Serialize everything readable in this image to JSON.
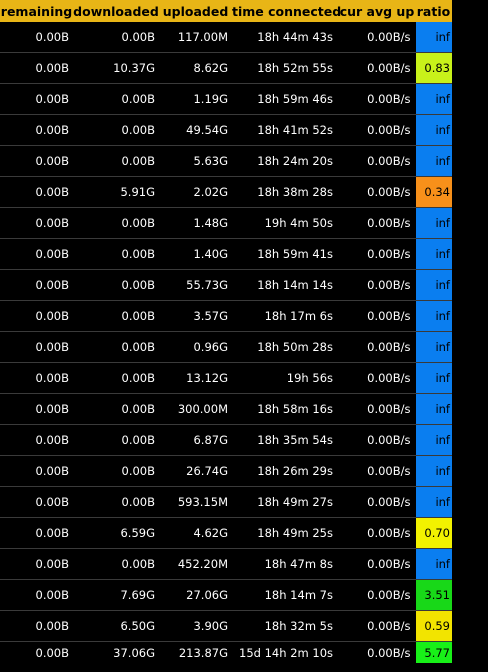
{
  "columns": [
    "remaining",
    "downloaded",
    "uploaded",
    "time connected",
    "cur avg up",
    "ratio"
  ],
  "rows": [
    {
      "remaining": "0.00B",
      "downloaded": "0.00B",
      "uploaded": "117.00M",
      "time": "18h 44m 43s",
      "cur_avg_up": "0.00B/s",
      "ratio": "inf",
      "ratio_color": "#0a7ef0"
    },
    {
      "remaining": "0.00B",
      "downloaded": "10.37G",
      "uploaded": "8.62G",
      "time": "18h 52m 55s",
      "cur_avg_up": "0.00B/s",
      "ratio": "0.83",
      "ratio_color": "#c8f21a"
    },
    {
      "remaining": "0.00B",
      "downloaded": "0.00B",
      "uploaded": "1.19G",
      "time": "18h 59m 46s",
      "cur_avg_up": "0.00B/s",
      "ratio": "inf",
      "ratio_color": "#0a7ef0"
    },
    {
      "remaining": "0.00B",
      "downloaded": "0.00B",
      "uploaded": "49.54G",
      "time": "18h 41m 52s",
      "cur_avg_up": "0.00B/s",
      "ratio": "inf",
      "ratio_color": "#0a7ef0"
    },
    {
      "remaining": "0.00B",
      "downloaded": "0.00B",
      "uploaded": "5.63G",
      "time": "18h 24m 20s",
      "cur_avg_up": "0.00B/s",
      "ratio": "inf",
      "ratio_color": "#0a7ef0"
    },
    {
      "remaining": "0.00B",
      "downloaded": "5.91G",
      "uploaded": "2.02G",
      "time": "18h 38m 28s",
      "cur_avg_up": "0.00B/s",
      "ratio": "0.34",
      "ratio_color": "#f7901a"
    },
    {
      "remaining": "0.00B",
      "downloaded": "0.00B",
      "uploaded": "1.48G",
      "time": "19h 4m 50s",
      "cur_avg_up": "0.00B/s",
      "ratio": "inf",
      "ratio_color": "#0a7ef0"
    },
    {
      "remaining": "0.00B",
      "downloaded": "0.00B",
      "uploaded": "1.40G",
      "time": "18h 59m 41s",
      "cur_avg_up": "0.00B/s",
      "ratio": "inf",
      "ratio_color": "#0a7ef0"
    },
    {
      "remaining": "0.00B",
      "downloaded": "0.00B",
      "uploaded": "55.73G",
      "time": "18h 14m 14s",
      "cur_avg_up": "0.00B/s",
      "ratio": "inf",
      "ratio_color": "#0a7ef0"
    },
    {
      "remaining": "0.00B",
      "downloaded": "0.00B",
      "uploaded": "3.57G",
      "time": "18h 17m 6s",
      "cur_avg_up": "0.00B/s",
      "ratio": "inf",
      "ratio_color": "#0a7ef0"
    },
    {
      "remaining": "0.00B",
      "downloaded": "0.00B",
      "uploaded": "0.96G",
      "time": "18h 50m 28s",
      "cur_avg_up": "0.00B/s",
      "ratio": "inf",
      "ratio_color": "#0a7ef0"
    },
    {
      "remaining": "0.00B",
      "downloaded": "0.00B",
      "uploaded": "13.12G",
      "time": "19h 56s",
      "cur_avg_up": "0.00B/s",
      "ratio": "inf",
      "ratio_color": "#0a7ef0"
    },
    {
      "remaining": "0.00B",
      "downloaded": "0.00B",
      "uploaded": "300.00M",
      "time": "18h 58m 16s",
      "cur_avg_up": "0.00B/s",
      "ratio": "inf",
      "ratio_color": "#0a7ef0"
    },
    {
      "remaining": "0.00B",
      "downloaded": "0.00B",
      "uploaded": "6.87G",
      "time": "18h 35m 54s",
      "cur_avg_up": "0.00B/s",
      "ratio": "inf",
      "ratio_color": "#0a7ef0"
    },
    {
      "remaining": "0.00B",
      "downloaded": "0.00B",
      "uploaded": "26.74G",
      "time": "18h 26m 29s",
      "cur_avg_up": "0.00B/s",
      "ratio": "inf",
      "ratio_color": "#0a7ef0"
    },
    {
      "remaining": "0.00B",
      "downloaded": "0.00B",
      "uploaded": "593.15M",
      "time": "18h 49m 27s",
      "cur_avg_up": "0.00B/s",
      "ratio": "inf",
      "ratio_color": "#0a7ef0"
    },
    {
      "remaining": "0.00B",
      "downloaded": "6.59G",
      "uploaded": "4.62G",
      "time": "18h 49m 25s",
      "cur_avg_up": "0.00B/s",
      "ratio": "0.70",
      "ratio_color": "#f2f200"
    },
    {
      "remaining": "0.00B",
      "downloaded": "0.00B",
      "uploaded": "452.20M",
      "time": "18h 47m 8s",
      "cur_avg_up": "0.00B/s",
      "ratio": "inf",
      "ratio_color": "#0a7ef0"
    },
    {
      "remaining": "0.00B",
      "downloaded": "7.69G",
      "uploaded": "27.06G",
      "time": "18h 14m 7s",
      "cur_avg_up": "0.00B/s",
      "ratio": "3.51",
      "ratio_color": "#18d818"
    },
    {
      "remaining": "0.00B",
      "downloaded": "6.50G",
      "uploaded": "3.90G",
      "time": "18h 32m 5s",
      "cur_avg_up": "0.00B/s",
      "ratio": "0.59",
      "ratio_color": "#f2e400"
    },
    {
      "remaining": "0.00B",
      "downloaded": "37.06G",
      "uploaded": "213.87G",
      "time": "15d 14h 2m 10s",
      "cur_avg_up": "0.00B/s",
      "ratio": "5.77",
      "ratio_color": "#18f018"
    }
  ]
}
